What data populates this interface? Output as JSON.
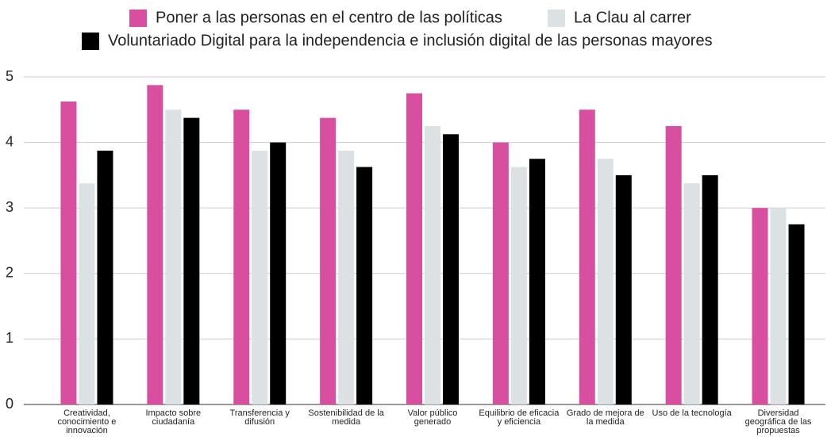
{
  "chart_data": {
    "type": "bar",
    "categories": [
      "Creatividad, conocimiento e innovación",
      "Impacto sobre ciudadanía",
      "Transferencia y difusión",
      "Sostenibilidad de la medida",
      "Valor público generado",
      "Equilibrio de eficacia y eficiencia",
      "Grado de mejora de la medida",
      "Uso de la tecnología",
      "Diversidad geográfica de las propuestas"
    ],
    "series": [
      {
        "name": "Poner a las personas en el centro de las políticas",
        "color": "#d94f9f",
        "values": [
          4.625,
          4.875,
          4.5,
          4.375,
          4.75,
          4,
          4.5,
          4.25,
          3
        ]
      },
      {
        "name": "La Clau al carrer",
        "color": "#dce1e3",
        "values": [
          3.375,
          4.5,
          3.875,
          3.875,
          4.25,
          3.625,
          3.75,
          3.375,
          3
        ]
      },
      {
        "name": "Voluntariado Digital para la independencia e inclusión digital de las personas mayores",
        "color": "#000000",
        "values": [
          3.875,
          4.375,
          4,
          3.625,
          4.125,
          3.75,
          3.5,
          3.5,
          2.75
        ]
      }
    ],
    "ylim": [
      0,
      5
    ],
    "yticks": [
      0,
      1,
      2,
      3,
      4,
      5
    ],
    "grid": true
  }
}
